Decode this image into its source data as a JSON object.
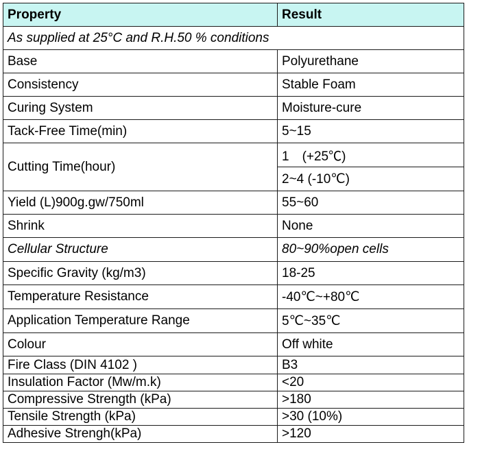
{
  "header": {
    "property": "Property",
    "result": "Result"
  },
  "subtitle": "As supplied at 25°C and R.H.50 % conditions",
  "rows": [
    {
      "property": "Base",
      "result": "Polyurethane"
    },
    {
      "property": "Consistency",
      "result": "Stable Foam"
    },
    {
      "property": "Curing System",
      "result": "Moisture-cure"
    },
    {
      "property": "Tack-Free Time(min)",
      "result": "5~15"
    },
    {
      "property": "Cutting Time(hour)",
      "result_1": "1　(+25℃)",
      "result_2": "2~4 (-10℃)"
    },
    {
      "property": "Yield (L)900g.gw/750ml",
      "result": "55~60"
    },
    {
      "property": "Shrink",
      "result": "None"
    },
    {
      "property": "Cellular Structure",
      "result": "80~90%open cells"
    },
    {
      "property": "Specific Gravity (kg/m3)",
      "result": "18-25"
    },
    {
      "property": "Temperature Resistance",
      "result": "-40℃~+80℃"
    },
    {
      "property": "Application Temperature Range",
      "result": "5℃~35℃"
    },
    {
      "property": "Colour",
      "result": "Off white"
    },
    {
      "property": "Fire Class (DIN 4102 )",
      "result": "B3"
    },
    {
      "property": "Insulation Factor  (Mw/m.k)",
      "result": "<20"
    },
    {
      "property": "Compressive Strength (kPa)",
      "result": ">180"
    },
    {
      "property": "Tensile Strength (kPa)",
      "result": ">30 (10%)"
    },
    {
      "property": "Adhesive Strengh(kPa)",
      "result": ">120"
    }
  ]
}
